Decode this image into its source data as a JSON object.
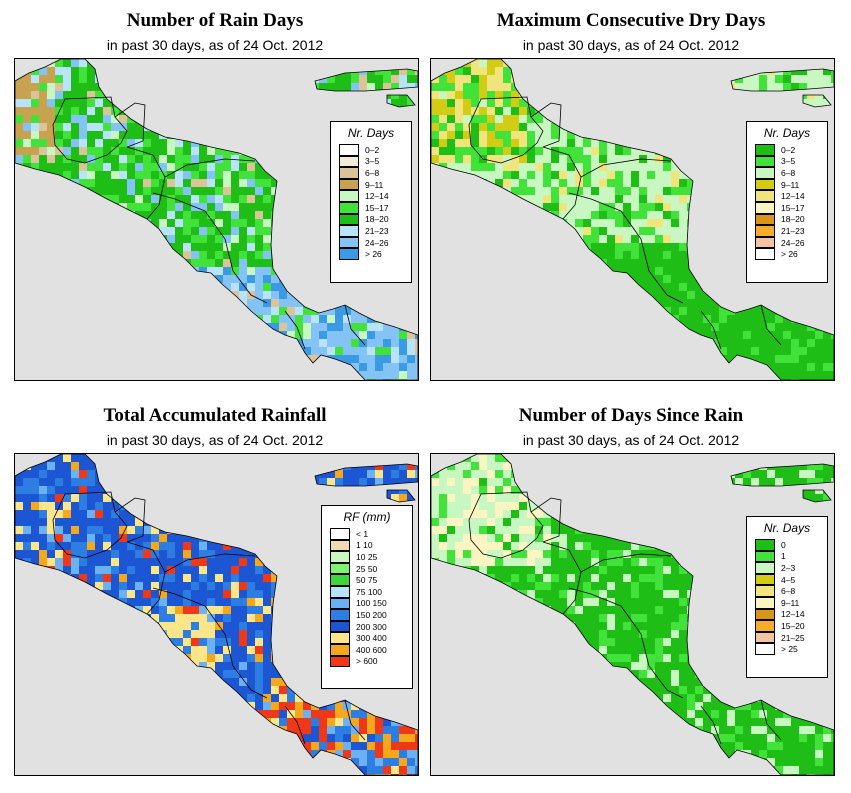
{
  "subtitle": "in past 30 days, as of  24 Oct. 2012",
  "panels": [
    {
      "id": "rain-days",
      "title": "Number of Rain Days",
      "subtitle": "in past 30 days, as of  24 Oct. 2012",
      "legend_title": "Nr. Days",
      "legend": [
        {
          "label": "0–2",
          "color": "#ffffff"
        },
        {
          "label": "3–5",
          "color": "#f1ead5"
        },
        {
          "label": "6–8",
          "color": "#dcc398"
        },
        {
          "label": "9–11",
          "color": "#c9a24f"
        },
        {
          "label": "12–14",
          "color": "#c9f7c1"
        },
        {
          "label": "15–17",
          "color": "#41e33b"
        },
        {
          "label": "18–20",
          "color": "#1fbe16"
        },
        {
          "label": "21–23",
          "color": "#b9e3fb"
        },
        {
          "label": "24–26",
          "color": "#84c3f6"
        },
        {
          "label": "> 26",
          "color": "#3a9ae4"
        }
      ],
      "dominant_color": "#1fbe16"
    },
    {
      "id": "max-dry-days",
      "title": "Maximum Consecutive Dry Days",
      "subtitle": "in past 30 days, as of  24 Oct. 2012",
      "legend_title": "Nr. Days",
      "legend": [
        {
          "label": "0–2",
          "color": "#1fbe16"
        },
        {
          "label": "3–5",
          "color": "#41e33b"
        },
        {
          "label": "6–8",
          "color": "#c9f7c1"
        },
        {
          "label": "9–11",
          "color": "#d3cc14"
        },
        {
          "label": "12–14",
          "color": "#f1e47d"
        },
        {
          "label": "15–17",
          "color": "#fbf4c3"
        },
        {
          "label": "18–20",
          "color": "#d8951a"
        },
        {
          "label": "21–23",
          "color": "#f6ac2a"
        },
        {
          "label": "24–26",
          "color": "#f4c4a2"
        },
        {
          "label": "> 26",
          "color": "#ffffff"
        }
      ],
      "dominant_color": "#c9f7c1"
    },
    {
      "id": "total-rainfall",
      "title": "Total Accumulated Rainfall",
      "subtitle": "in past 30 days, as of  24 Oct. 2012",
      "legend_title": "RF (mm)",
      "legend": [
        {
          "label": "< 1",
          "color": "#ffffff"
        },
        {
          "label": "1  10",
          "color": "#f1dcb0"
        },
        {
          "label": "10  25",
          "color": "#c9f7c1"
        },
        {
          "label": "25  50",
          "color": "#7ff274"
        },
        {
          "label": "50  75",
          "color": "#3ed63a"
        },
        {
          "label": "75  100",
          "color": "#b9e3fb"
        },
        {
          "label": "100  150",
          "color": "#6ab2f4"
        },
        {
          "label": "150  200",
          "color": "#2c7ee3"
        },
        {
          "label": "200  300",
          "color": "#1c56d3"
        },
        {
          "label": "300  400",
          "color": "#fde58a"
        },
        {
          "label": "400  600",
          "color": "#f6a81d"
        },
        {
          "label": "> 600",
          "color": "#ef3817"
        }
      ],
      "dominant_color": "#1c56d3"
    },
    {
      "id": "days-since-rain",
      "title": "Number of Days Since Rain",
      "subtitle": "in past 30 days, as of  24 Oct. 2012",
      "legend_title": "Nr. Days",
      "legend": [
        {
          "label": "0",
          "color": "#1fbe16"
        },
        {
          "label": "1",
          "color": "#41e33b"
        },
        {
          "label": "2–3",
          "color": "#c9f7c1"
        },
        {
          "label": "4–5",
          "color": "#d3cc14"
        },
        {
          "label": "6–8",
          "color": "#f1e47d"
        },
        {
          "label": "9–11",
          "color": "#fbf4c3"
        },
        {
          "label": "12–14",
          "color": "#d8951a"
        },
        {
          "label": "15–20",
          "color": "#f6ac2a"
        },
        {
          "label": "21–25",
          "color": "#f4c4a2"
        },
        {
          "label": "> 25",
          "color": "#ffffff"
        }
      ],
      "dominant_color": "#1fbe16"
    }
  ]
}
